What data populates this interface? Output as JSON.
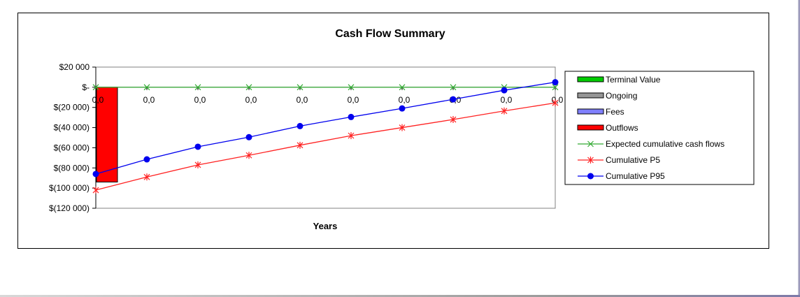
{
  "chart_data": {
    "type": "line",
    "title": "Cash Flow Summary",
    "xlabel": "Years",
    "ylabel": "",
    "x_tick_labels": [
      "0,0",
      "0,0",
      "0,0",
      "0,0",
      "0,0",
      "0,0",
      "0,0",
      "0,0",
      "0,0",
      "0,0"
    ],
    "y_ticks": [
      20000,
      0,
      -20000,
      -40000,
      -60000,
      -80000,
      -100000,
      -120000
    ],
    "y_tick_labels": [
      "$20 000",
      "$-",
      "$(20 000)",
      "$(40 000)",
      "$(60 000)",
      "$(80 000)",
      "$(100 000)",
      "$(120 000)"
    ],
    "ylim": [
      -120000,
      20000
    ],
    "grid": false,
    "legend_position": "right",
    "series": [
      {
        "name": "Terminal Value",
        "kind": "bar",
        "color": "#00cc00",
        "values": [
          0,
          0,
          0,
          0,
          0,
          0,
          0,
          0,
          0,
          0
        ]
      },
      {
        "name": "Ongoing",
        "kind": "bar",
        "color": "#969696",
        "values": [
          0,
          0,
          0,
          0,
          0,
          0,
          0,
          0,
          0,
          0
        ]
      },
      {
        "name": "Fees",
        "kind": "bar",
        "color": "#8080ff",
        "values": [
          0,
          0,
          0,
          0,
          0,
          0,
          0,
          0,
          0,
          0
        ]
      },
      {
        "name": "Outflows",
        "kind": "bar",
        "color": "#ff0000",
        "values": [
          -94000,
          0,
          0,
          0,
          0,
          0,
          0,
          0,
          0,
          0
        ]
      },
      {
        "name": "Expected cumulative cash flows",
        "kind": "line",
        "marker": "x",
        "color": "#33aa33",
        "values": [
          0,
          0,
          0,
          0,
          0,
          0,
          0,
          0,
          0,
          0
        ]
      },
      {
        "name": "Cumulative P5",
        "kind": "line",
        "marker": "star",
        "color": "#ff2222",
        "values": [
          -102000,
          -89000,
          -77000,
          -67500,
          -57500,
          -48000,
          -40000,
          -32000,
          -23500,
          -15500
        ]
      },
      {
        "name": "Cumulative P95",
        "kind": "line",
        "marker": "dot",
        "color": "#0000ee",
        "values": [
          -86000,
          -71500,
          -59000,
          -49500,
          -38500,
          -29500,
          -21000,
          -12000,
          -3000,
          5000
        ]
      }
    ]
  }
}
